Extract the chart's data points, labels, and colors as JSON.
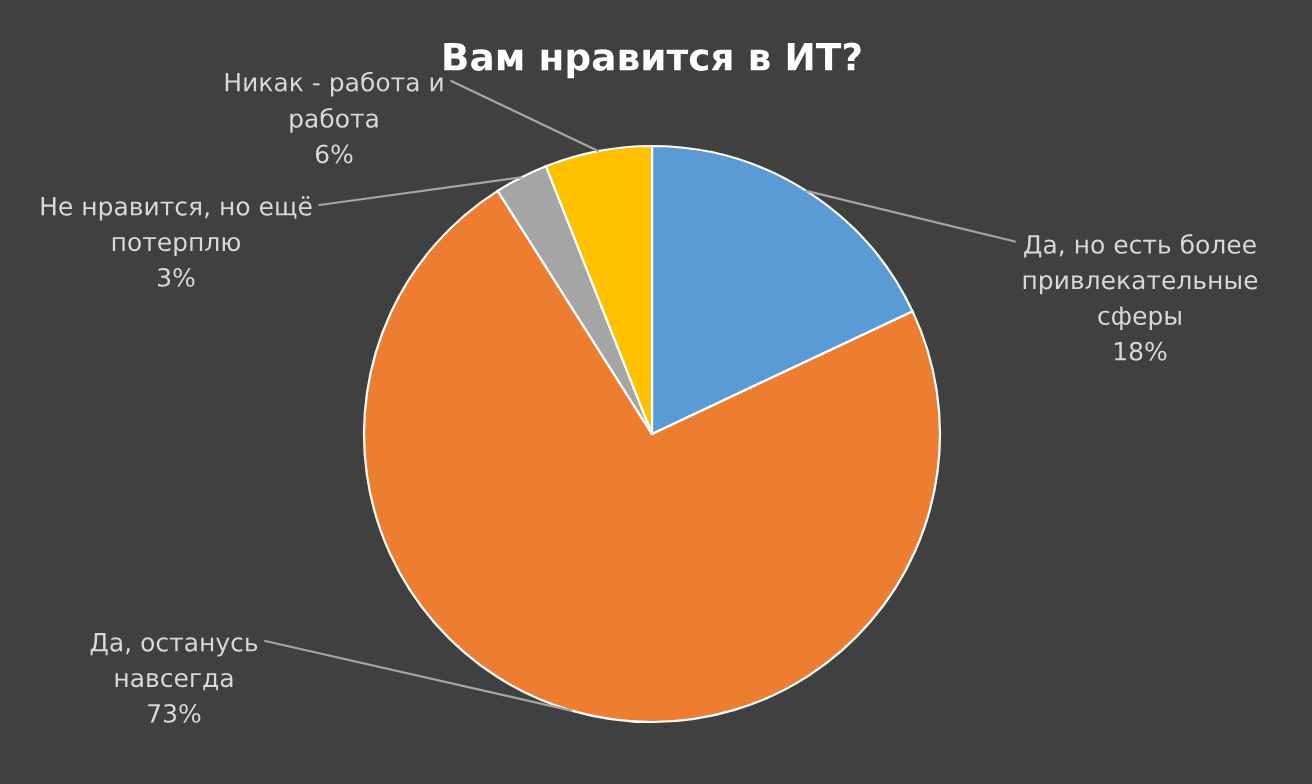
{
  "chart_data": {
    "type": "pie",
    "title": "Вам нравится в ИТ?",
    "categories": [
      "Да, но есть более\nпривлекательные\nсферы",
      "Да, останусь\nнавсегда",
      "Не нравится, но ещё\nпотерплю",
      "Никак - работа и\nработа"
    ],
    "values": [
      18,
      73,
      3,
      6
    ],
    "value_labels": [
      "18%",
      "73%",
      "3%",
      "6%"
    ],
    "colors": [
      "#5b9bd5",
      "#ed7d31",
      "#a5a5a5",
      "#ffc000"
    ],
    "legend": false
  }
}
